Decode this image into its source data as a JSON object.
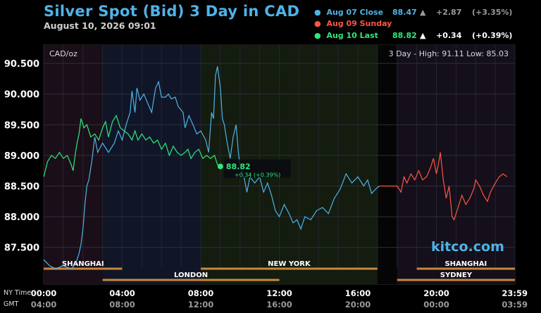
{
  "header": {
    "title": "Silver Spot (Bid) 3 Day in CAD",
    "date": "August 10, 2026 09:01"
  },
  "legend": [
    {
      "label": "Aug 07 Close",
      "value": "88.47",
      "arrow": "▲",
      "change": "+2.87",
      "pct": "(+3.35%)",
      "color": "#4fb3e8",
      "dim": true
    },
    {
      "label": "Aug 09 Sunday",
      "value": "",
      "arrow": "",
      "change": "",
      "pct": "",
      "color": "#ff5544",
      "dim": false
    },
    {
      "label": "Aug 10 Last",
      "value": "88.82",
      "arrow": "▲",
      "change": "+0.34",
      "pct": "(+0.39%)",
      "color": "#2ee87a",
      "dim": false
    }
  ],
  "watermark": "kitco.com",
  "timezones": {
    "ny": "NY Time",
    "gmt": "GMT"
  },
  "chart_data": {
    "type": "line",
    "unit_label": "CAD/oz",
    "hilo_label": "3 Day - High: 91.11  Low: 85.03",
    "ylim": [
      86.9,
      90.8
    ],
    "yticks": [
      "87.500",
      "88.000",
      "88.500",
      "89.000",
      "89.500",
      "90.000",
      "90.500"
    ],
    "xlim": [
      0,
      24
    ],
    "xticks_ny": [
      "00:00",
      "04:00",
      "08:00",
      "12:00",
      "16:00",
      "20:00",
      "23:59"
    ],
    "xticks_gmt": [
      "04:00",
      "08:00",
      "12:00",
      "16:00",
      "20:00",
      "00:00",
      "03:59"
    ],
    "last_label": "88.82",
    "last_change_label": "+0.34 (+0.39%)",
    "last_point": [
      9.0,
      88.82
    ],
    "sessions": [
      {
        "name": "SHANGHAI",
        "start": 0,
        "end": 4
      },
      {
        "name": "LONDON",
        "start": 3,
        "end": 12
      },
      {
        "name": "NEW YORK",
        "start": 8,
        "end": 17
      },
      {
        "name": "SHANGHAI",
        "start": 19,
        "end": 24
      },
      {
        "name": "SYDNEY",
        "start": 18,
        "end": 24
      }
    ],
    "series": [
      {
        "color": "#4fb3e8",
        "points": [
          [
            0,
            87.3
          ],
          [
            0.3,
            87.2
          ],
          [
            0.6,
            87.15
          ],
          [
            1.0,
            87.2
          ],
          [
            1.4,
            87.15
          ],
          [
            1.6,
            87.22
          ],
          [
            1.7,
            87.3
          ],
          [
            1.8,
            87.4
          ],
          [
            1.9,
            87.55
          ],
          [
            2.0,
            87.8
          ],
          [
            2.1,
            88.2
          ],
          [
            2.2,
            88.5
          ],
          [
            2.3,
            88.6
          ],
          [
            2.45,
            88.9
          ],
          [
            2.6,
            89.3
          ],
          [
            2.75,
            89.05
          ],
          [
            3.0,
            89.2
          ],
          [
            3.3,
            89.05
          ],
          [
            3.6,
            89.2
          ],
          [
            3.8,
            89.4
          ],
          [
            4.0,
            89.25
          ],
          [
            4.2,
            89.5
          ],
          [
            4.4,
            89.7
          ],
          [
            4.5,
            90.05
          ],
          [
            4.65,
            89.7
          ],
          [
            4.75,
            90.1
          ],
          [
            4.9,
            89.9
          ],
          [
            5.1,
            90.0
          ],
          [
            5.3,
            89.85
          ],
          [
            5.5,
            89.7
          ],
          [
            5.7,
            90.1
          ],
          [
            5.85,
            90.2
          ],
          [
            6.0,
            89.95
          ],
          [
            6.2,
            89.95
          ],
          [
            6.35,
            90.0
          ],
          [
            6.5,
            89.92
          ],
          [
            6.7,
            89.95
          ],
          [
            6.85,
            89.8
          ],
          [
            7.1,
            89.7
          ],
          [
            7.2,
            89.45
          ],
          [
            7.4,
            89.65
          ],
          [
            7.6,
            89.5
          ],
          [
            7.8,
            89.35
          ],
          [
            8.0,
            89.4
          ],
          [
            8.25,
            89.25
          ],
          [
            8.4,
            89.05
          ],
          [
            8.55,
            89.7
          ],
          [
            8.65,
            89.6
          ],
          [
            8.75,
            90.3
          ],
          [
            8.85,
            90.45
          ],
          [
            9.0,
            90.1
          ],
          [
            9.1,
            89.6
          ],
          [
            9.2,
            89.5
          ],
          [
            9.35,
            89.2
          ],
          [
            9.5,
            88.95
          ],
          [
            9.65,
            89.3
          ],
          [
            9.8,
            89.5
          ],
          [
            9.9,
            89.1
          ],
          [
            10.0,
            88.8
          ],
          [
            10.2,
            88.65
          ],
          [
            10.35,
            88.4
          ],
          [
            10.5,
            88.65
          ],
          [
            10.75,
            88.55
          ],
          [
            11.0,
            88.65
          ],
          [
            11.2,
            88.4
          ],
          [
            11.4,
            88.55
          ],
          [
            11.6,
            88.35
          ],
          [
            11.8,
            88.1
          ],
          [
            12.0,
            88.0
          ],
          [
            12.25,
            88.2
          ],
          [
            12.5,
            88.05
          ],
          [
            12.7,
            87.9
          ],
          [
            12.9,
            87.95
          ],
          [
            13.1,
            87.8
          ],
          [
            13.3,
            88.0
          ],
          [
            13.6,
            87.95
          ],
          [
            13.9,
            88.1
          ],
          [
            14.2,
            88.15
          ],
          [
            14.5,
            88.05
          ],
          [
            14.8,
            88.3
          ],
          [
            15.1,
            88.45
          ],
          [
            15.4,
            88.7
          ],
          [
            15.7,
            88.55
          ],
          [
            16.0,
            88.65
          ],
          [
            16.3,
            88.5
          ],
          [
            16.5,
            88.6
          ],
          [
            16.7,
            88.38
          ],
          [
            16.9,
            88.45
          ],
          [
            17.1,
            88.5
          ]
        ]
      },
      {
        "color": "#ff5544",
        "points": [
          [
            17.1,
            88.5
          ],
          [
            18.0,
            88.5
          ],
          [
            18.2,
            88.4
          ],
          [
            18.35,
            88.65
          ],
          [
            18.5,
            88.55
          ],
          [
            18.7,
            88.7
          ],
          [
            18.9,
            88.6
          ],
          [
            19.1,
            88.75
          ],
          [
            19.3,
            88.6
          ],
          [
            19.5,
            88.65
          ],
          [
            19.7,
            88.8
          ],
          [
            19.85,
            88.95
          ],
          [
            20.0,
            88.7
          ],
          [
            20.1,
            88.85
          ],
          [
            20.2,
            89.05
          ],
          [
            20.35,
            88.6
          ],
          [
            20.5,
            88.3
          ],
          [
            20.65,
            88.5
          ],
          [
            20.8,
            88.0
          ],
          [
            20.9,
            87.95
          ],
          [
            21.1,
            88.15
          ],
          [
            21.3,
            88.35
          ],
          [
            21.5,
            88.2
          ],
          [
            21.7,
            88.3
          ],
          [
            21.9,
            88.45
          ],
          [
            22.0,
            88.6
          ],
          [
            22.2,
            88.5
          ],
          [
            22.4,
            88.35
          ],
          [
            22.6,
            88.25
          ],
          [
            22.75,
            88.4
          ],
          [
            23.0,
            88.55
          ],
          [
            23.2,
            88.65
          ],
          [
            23.4,
            88.7
          ],
          [
            23.6,
            88.65
          ]
        ]
      },
      {
        "color": "#2ee87a",
        "points": [
          [
            0,
            88.65
          ],
          [
            0.2,
            88.9
          ],
          [
            0.4,
            89.0
          ],
          [
            0.6,
            88.95
          ],
          [
            0.8,
            89.05
          ],
          [
            1.0,
            88.95
          ],
          [
            1.2,
            89.0
          ],
          [
            1.4,
            88.85
          ],
          [
            1.5,
            88.75
          ],
          [
            1.6,
            89.0
          ],
          [
            1.7,
            89.2
          ],
          [
            1.8,
            89.35
          ],
          [
            1.9,
            89.6
          ],
          [
            2.05,
            89.45
          ],
          [
            2.2,
            89.5
          ],
          [
            2.4,
            89.3
          ],
          [
            2.6,
            89.35
          ],
          [
            2.8,
            89.25
          ],
          [
            3.0,
            89.45
          ],
          [
            3.15,
            89.55
          ],
          [
            3.3,
            89.3
          ],
          [
            3.5,
            89.55
          ],
          [
            3.7,
            89.65
          ],
          [
            3.9,
            89.45
          ],
          [
            4.1,
            89.4
          ],
          [
            4.3,
            89.35
          ],
          [
            4.5,
            89.25
          ],
          [
            4.65,
            89.4
          ],
          [
            4.8,
            89.25
          ],
          [
            5.0,
            89.35
          ],
          [
            5.2,
            89.25
          ],
          [
            5.4,
            89.3
          ],
          [
            5.6,
            89.2
          ],
          [
            5.8,
            89.25
          ],
          [
            6.0,
            89.1
          ],
          [
            6.2,
            89.2
          ],
          [
            6.4,
            89.0
          ],
          [
            6.6,
            89.15
          ],
          [
            6.8,
            89.05
          ],
          [
            7.0,
            89.0
          ],
          [
            7.2,
            89.05
          ],
          [
            7.35,
            89.1
          ],
          [
            7.5,
            88.95
          ],
          [
            7.7,
            89.05
          ],
          [
            7.9,
            89.1
          ],
          [
            8.1,
            88.95
          ],
          [
            8.3,
            89.0
          ],
          [
            8.5,
            88.95
          ],
          [
            8.7,
            89.0
          ],
          [
            8.85,
            88.85
          ],
          [
            9.0,
            88.82
          ]
        ]
      }
    ]
  }
}
